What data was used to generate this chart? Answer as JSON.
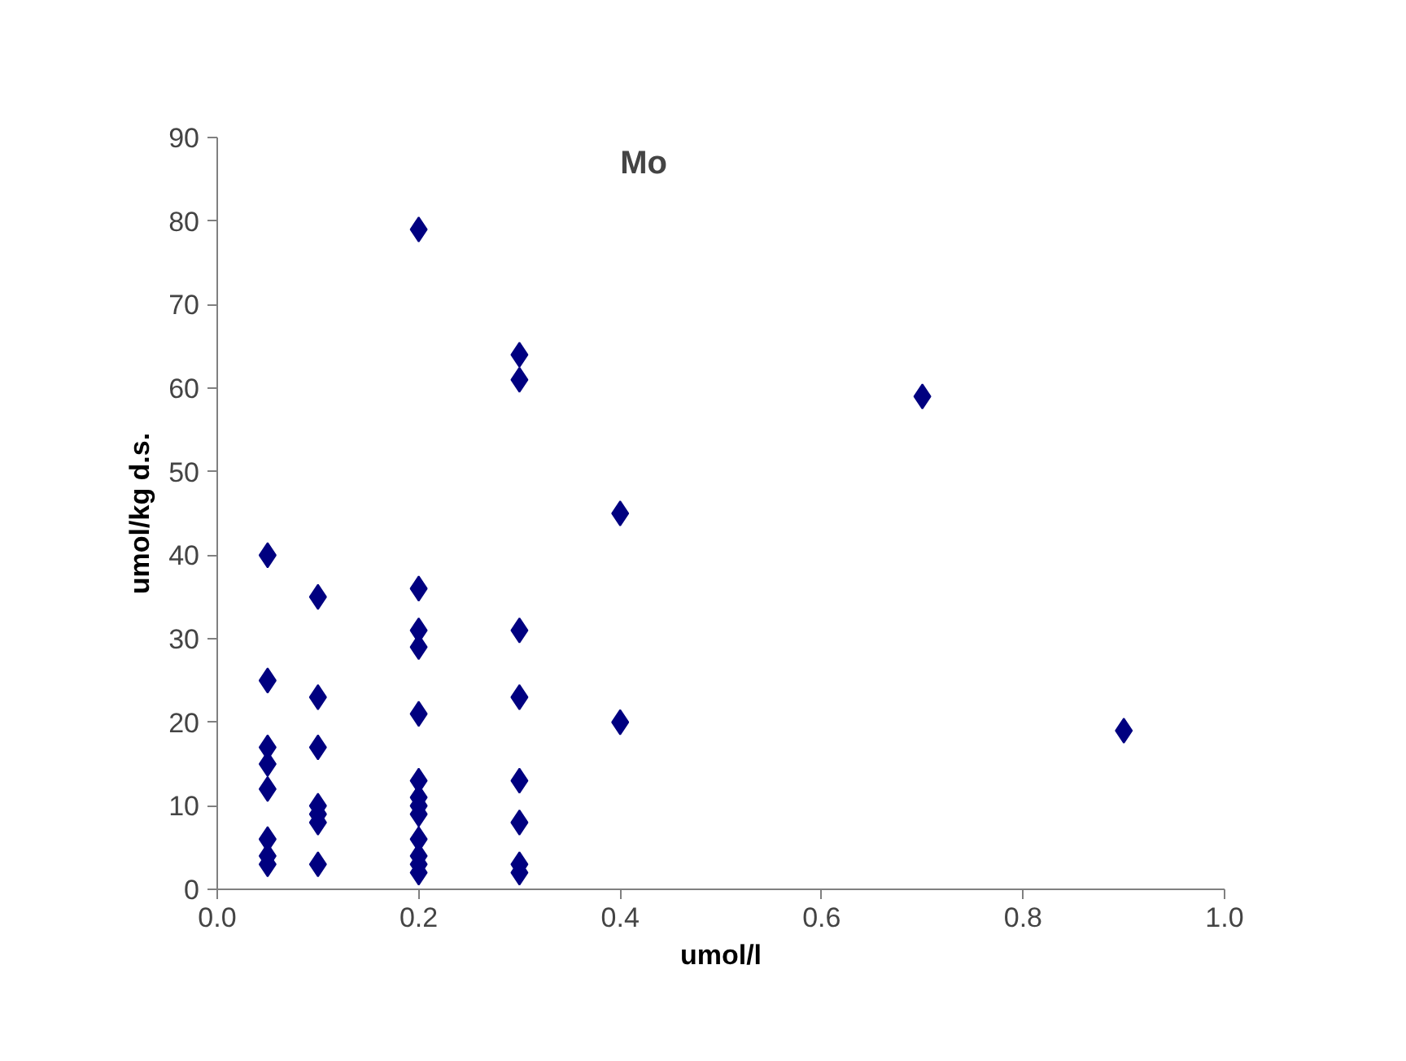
{
  "chart_data": {
    "type": "scatter",
    "title": "Mo",
    "xlabel": "umol/l",
    "ylabel": "umol/kg d.s.",
    "series": [
      {
        "color": "#000080",
        "x": [
          0.05,
          0.05,
          0.05,
          0.05,
          0.05,
          0.05,
          0.05,
          0.05,
          0.1,
          0.1,
          0.1,
          0.1,
          0.1,
          0.1,
          0.1,
          0.2,
          0.2,
          0.2,
          0.2,
          0.2,
          0.2,
          0.2,
          0.2,
          0.2,
          0.2,
          0.2,
          0.2,
          0.2,
          0.3,
          0.3,
          0.3,
          0.3,
          0.3,
          0.3,
          0.3,
          0.3,
          0.4,
          0.4,
          0.7,
          0.9
        ],
        "values": [
          40,
          25,
          17,
          15,
          12,
          6,
          4,
          3,
          35,
          23,
          17,
          10,
          9,
          8,
          3,
          79,
          36,
          31,
          29,
          21,
          13,
          11,
          10,
          9,
          6,
          4,
          3,
          2,
          64,
          61,
          31,
          23,
          13,
          8,
          3,
          2,
          45,
          20,
          59,
          19
        ]
      }
    ],
    "marker": "diamond",
    "xlim": [
      0,
      1
    ],
    "ylim": [
      0,
      90
    ],
    "xticks": [
      {
        "value": 0,
        "label": "0.0"
      },
      {
        "value": 0.2,
        "label": "0.2"
      },
      {
        "value": 0.4,
        "label": "0.4"
      },
      {
        "value": 0.6,
        "label": "0.6"
      },
      {
        "value": 0.8,
        "label": "0.8"
      },
      {
        "value": 1,
        "label": "1.0"
      }
    ],
    "yticks": [
      0,
      10,
      20,
      30,
      40,
      50,
      60,
      70,
      80,
      90
    ]
  }
}
